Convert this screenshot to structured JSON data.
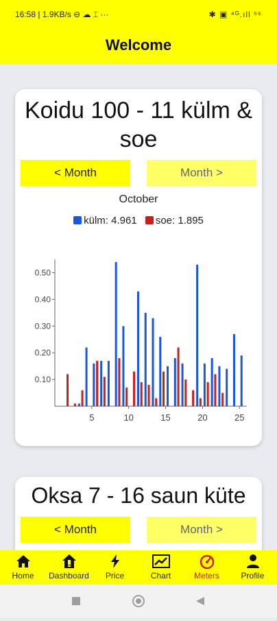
{
  "status_bar": {
    "left": "16:58 | 1.9KB/s ⊖ ☁ ⌶  ···",
    "right": "✱ ▣ ⁴ᴳ.ıll ⁵⁶"
  },
  "app_bar": {
    "title": "Welcome"
  },
  "cards": [
    {
      "title": "Koidu 100 - 11 külm & soe",
      "prev_label": "< Month",
      "next_label": "Month >",
      "month": "October",
      "legend": [
        {
          "label": "külm: 4.961",
          "color": "#1a56db"
        },
        {
          "label": "soe: 1.895",
          "color": "#c81e1e"
        }
      ]
    },
    {
      "title": "Oksa 7 - 16 saun küte",
      "prev_label": "< Month",
      "next_label": "Month >"
    }
  ],
  "chart_data": {
    "type": "bar",
    "x": [
      2,
      3,
      4,
      5,
      6,
      7,
      8,
      9,
      10,
      11,
      12,
      13,
      14,
      15,
      16,
      17,
      18,
      19,
      20,
      21,
      22,
      23,
      24,
      25
    ],
    "series": [
      {
        "name": "külm",
        "color": "#1a56db",
        "values": [
          0,
          0.01,
          0.22,
          0.16,
          0.17,
          0.17,
          0.54,
          0.3,
          0,
          0.43,
          0.35,
          0.33,
          0.26,
          0.15,
          0.18,
          0.16,
          0,
          0.53,
          0.16,
          0.18,
          0.15,
          0.14,
          0.27,
          0.19
        ]
      },
      {
        "name": "soe",
        "color": "#c81e1e",
        "values": [
          0.12,
          0.01,
          0.06,
          0,
          0.17,
          0.11,
          0,
          0.18,
          0.07,
          0.13,
          0.09,
          0.08,
          0.03,
          0.13,
          0,
          0.22,
          0.1,
          0.06,
          0.03,
          0.09,
          0.12,
          0.05,
          0,
          0
        ]
      }
    ],
    "x_ticks": [
      5,
      10,
      15,
      20,
      25
    ],
    "y_ticks": [
      0.1,
      0.2,
      0.3,
      0.4,
      0.5
    ],
    "y_tick_labels": [
      "0.10",
      "0.20",
      "0.30",
      "0.40",
      "0.50"
    ],
    "xlim": [
      0,
      26
    ],
    "ylim": [
      0,
      0.55
    ],
    "legend": "top-center"
  },
  "bottom_nav": [
    {
      "label": "Home",
      "icon": "home-icon"
    },
    {
      "label": "Dashboard",
      "icon": "dashboard-icon"
    },
    {
      "label": "Price",
      "icon": "bolt-icon"
    },
    {
      "label": "Chart",
      "icon": "trend-icon"
    },
    {
      "label": "Meters",
      "icon": "speedometer-icon",
      "active": true,
      "active_color": "#d81b1b"
    },
    {
      "label": "Profile",
      "icon": "person-icon"
    }
  ],
  "system_nav": {
    "icons": [
      "recent-apps-icon",
      "home-circle-icon",
      "back-icon"
    ]
  }
}
